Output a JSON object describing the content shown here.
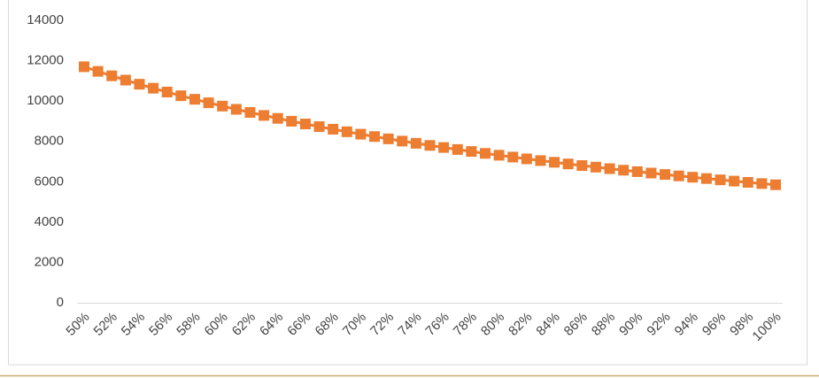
{
  "chart_data": {
    "type": "line",
    "color": "#ed7d31",
    "marker": "square",
    "categories": [
      "50%",
      null,
      "52%",
      null,
      "54%",
      null,
      "56%",
      null,
      "58%",
      null,
      "60%",
      null,
      "62%",
      null,
      "64%",
      null,
      "66%",
      null,
      "68%",
      null,
      "70%",
      null,
      "72%",
      null,
      "74%",
      null,
      "76%",
      null,
      "78%",
      null,
      "80%",
      null,
      "82%",
      null,
      "84%",
      null,
      "86%",
      null,
      "88%",
      null,
      "90%",
      null,
      "92%",
      null,
      "94%",
      null,
      "96%",
      null,
      "98%",
      null,
      "100%"
    ],
    "values": [
      11700,
      11471,
      11250,
      11038,
      10833,
      10636,
      10446,
      10263,
      10086,
      9915,
      9750,
      9590,
      9435,
      9286,
      9141,
      9000,
      8864,
      8731,
      8603,
      8478,
      8357,
      8239,
      8125,
      8014,
      7905,
      7800,
      7697,
      7597,
      7500,
      7405,
      7313,
      7222,
      7134,
      7048,
      6964,
      6882,
      6802,
      6724,
      6648,
      6573,
      6500,
      6429,
      6359,
      6290,
      6223,
      6158,
      6094,
      6031,
      5969,
      5909,
      5850
    ],
    "ylim": [
      0,
      14000
    ],
    "yticks": [
      0,
      2000,
      4000,
      6000,
      8000,
      10000,
      12000,
      14000
    ],
    "grid": false
  }
}
